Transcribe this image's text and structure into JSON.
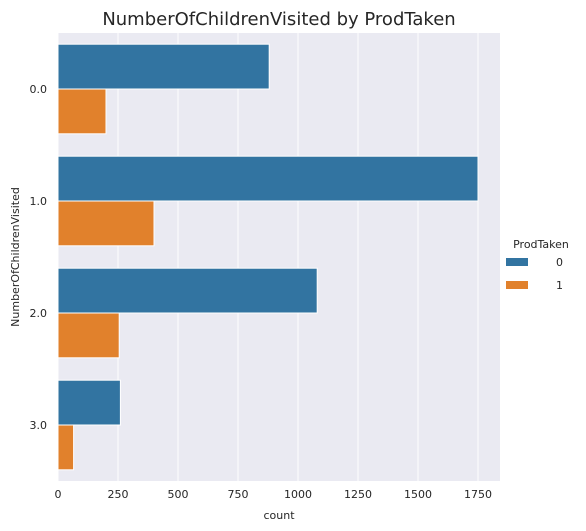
{
  "chart_data": {
    "type": "bar",
    "orientation": "horizontal",
    "title": "NumberOfChildrenVisited by ProdTaken",
    "xlabel": "count",
    "ylabel": "NumberOfChildrenVisited",
    "categories": [
      "0.0",
      "1.0",
      "2.0",
      "3.0"
    ],
    "xlim": [
      0,
      1840
    ],
    "xticks": [
      0,
      250,
      500,
      750,
      1000,
      1250,
      1500,
      1750
    ],
    "grid": true,
    "legend": {
      "title": "ProdTaken",
      "placement": "right"
    },
    "series": [
      {
        "name": "0",
        "color": "#3274a1",
        "values": [
          880,
          1750,
          1080,
          260
        ]
      },
      {
        "name": "1",
        "color": "#e1812c",
        "values": [
          200,
          400,
          255,
          65
        ]
      }
    ]
  }
}
